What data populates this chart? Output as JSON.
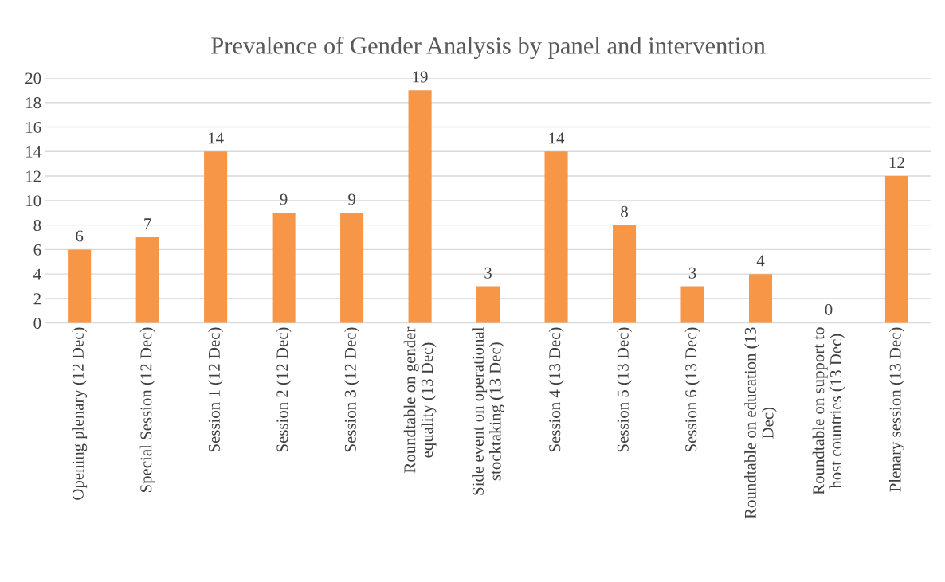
{
  "chart_data": {
    "type": "bar",
    "title": "Prevalence of Gender Analysis by panel and intervention",
    "categories": [
      "Opening plenary (12 Dec)",
      "Special Session (12 Dec)",
      "Session 1 (12 Dec)",
      "Session 2 (12 Dec)",
      "Session 3 (12 Dec)",
      "Roundtable on gender\nequality (13 Dec)",
      "Side event on operational\nstocktaking (13 Dec)",
      "Session 4 (13 Dec)",
      "Session 5 (13 Dec)",
      "Session 6 (13 Dec)",
      "Roundtable on education (13\nDec)",
      "Roundtable on support to\nhost countries (13 Dec)",
      "Plenary session (13 Dec)"
    ],
    "values": [
      6,
      7,
      14,
      9,
      9,
      19,
      3,
      14,
      8,
      3,
      4,
      0,
      12
    ],
    "color": "#f79646",
    "ylim": [
      0,
      20
    ],
    "yticks": [
      0,
      2,
      4,
      6,
      8,
      10,
      12,
      14,
      16,
      18,
      20
    ],
    "grid": "y",
    "data_labels": true
  }
}
